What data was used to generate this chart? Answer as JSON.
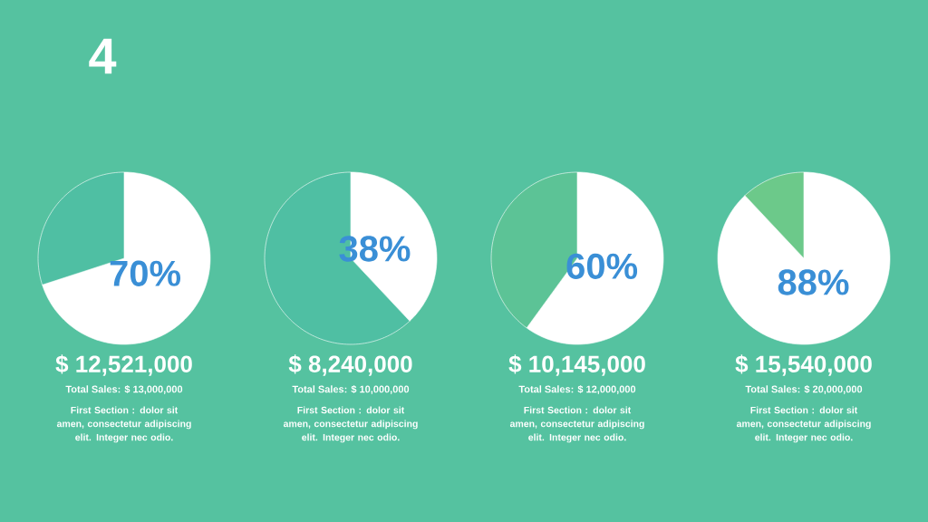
{
  "chart_data": [
    {
      "type": "pie",
      "categories": [
        null,
        null
      ],
      "values": [
        70,
        30
      ],
      "colors": [
        "#ffffff",
        "#4fbfa3"
      ],
      "value_labels": [
        "70%",
        null
      ],
      "annotations": [
        "$ 12,521,000",
        "Total Sales: $ 13,000,000",
        "First Section : dolor sit amen, consectetur adipiscing elit. Integer nec odio.",
        "4"
      ]
    },
    {
      "type": "pie",
      "categories": [
        null,
        null
      ],
      "values": [
        38,
        62
      ],
      "colors": [
        "#ffffff",
        "#4fbfa3"
      ],
      "value_labels": [
        "38%",
        null
      ],
      "annotations": [
        "$ 8,240,000",
        "Total Sales: $ 10,000,000",
        "First Section : dolor sit amen, consectetur adipiscing elit. Integer nec odio."
      ]
    },
    {
      "type": "pie",
      "categories": [
        null,
        null
      ],
      "values": [
        60,
        40
      ],
      "colors": [
        "#ffffff",
        "#5cc396"
      ],
      "value_labels": [
        "60%",
        null
      ],
      "annotations": [
        "$ 10,145,000",
        "Total Sales: $ 12,000,000",
        "First Section : dolor sit amen, consectetur adipiscing elit. Integer nec odio."
      ]
    },
    {
      "type": "pie",
      "categories": [
        null,
        null
      ],
      "values": [
        88,
        12
      ],
      "colors": [
        "#ffffff",
        "#6cc98a"
      ],
      "value_labels": [
        "88%",
        null
      ],
      "annotations": [
        "$ 15,540,000",
        "Total Sales: $ 20,000,000",
        "First Section : dolor sit amen, consectetur adipiscing elit. Integer nec odio."
      ]
    }
  ]
}
